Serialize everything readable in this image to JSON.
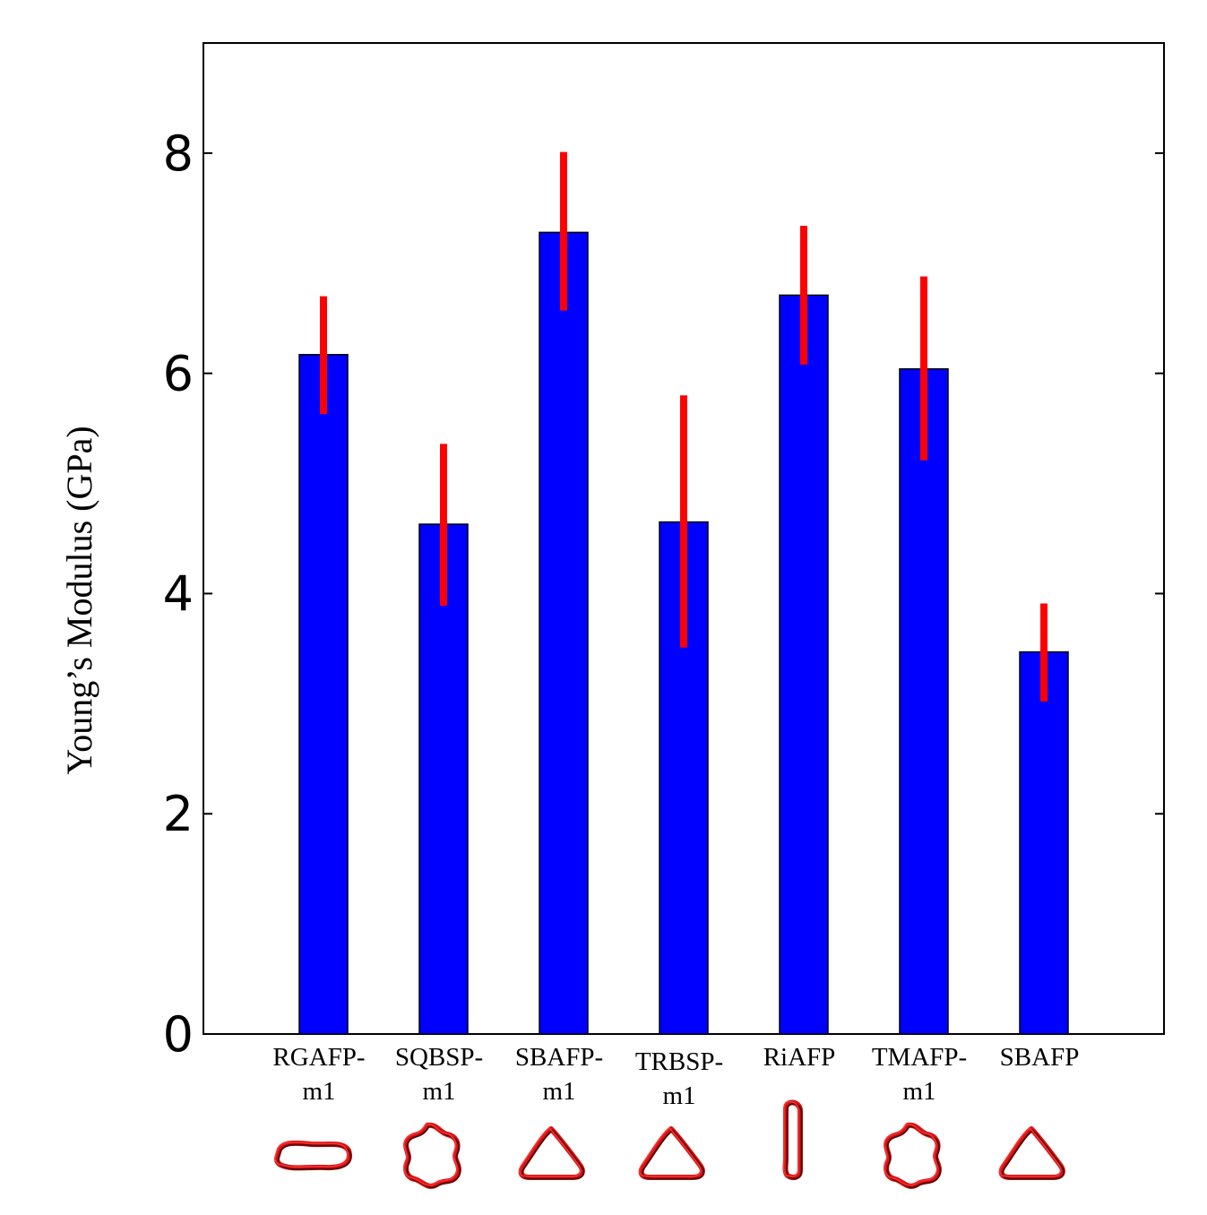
{
  "chart_data": {
    "type": "bar",
    "title": "",
    "xlabel": "",
    "ylabel": "Young’s Modulus (GPa)",
    "ylim": [
      0,
      9
    ],
    "yticks": [
      "0",
      "2",
      "4",
      "6",
      "8"
    ],
    "categories": [
      {
        "line1": "RGAFP-",
        "line2": "m1",
        "icon": "circular-protein-structure-icon"
      },
      {
        "line1": "SQBSP-",
        "line2": "m1",
        "icon": "square-protein-structure-icon"
      },
      {
        "line1": "SBAFP-",
        "line2": "m1",
        "icon": "triangular-protein-structure-icon"
      },
      {
        "line1": "TRBSP-",
        "line2": "m1",
        "icon": "triangular-protein-structure-icon"
      },
      {
        "line1": "RiAFP",
        "line2": "",
        "icon": "flat-protein-structure-icon"
      },
      {
        "line1": "TMAFP-",
        "line2": "m1",
        "icon": "square-protein-structure-icon"
      },
      {
        "line1": "SBAFP",
        "line2": "",
        "icon": "triangular-protein-structure-icon"
      }
    ],
    "values": [
      6.17,
      4.63,
      7.28,
      4.65,
      6.71,
      6.04,
      3.47
    ],
    "error_low": [
      5.63,
      3.89,
      6.57,
      3.51,
      6.08,
      5.21,
      3.02
    ],
    "error_high": [
      6.7,
      5.36,
      8.01,
      5.8,
      7.34,
      6.88,
      3.91
    ],
    "bar_color": "#0000ff",
    "error_color": "#ff0000",
    "grid": false,
    "legend": "none"
  }
}
